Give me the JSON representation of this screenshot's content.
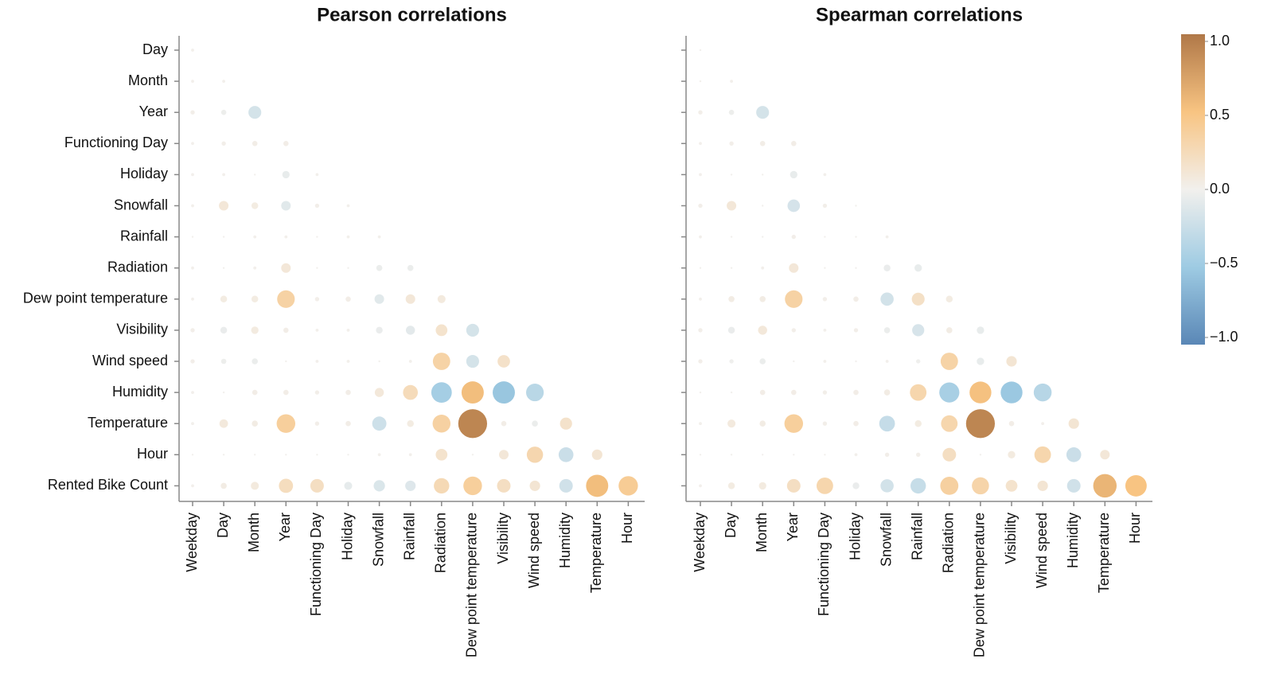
{
  "chart_data": [
    {
      "type": "bubble-matrix",
      "title": "Pearson correlations",
      "x_categories": [
        "Weekday",
        "Day",
        "Month",
        "Year",
        "Functioning Day",
        "Holiday",
        "Snowfall",
        "Rainfall",
        "Radiation",
        "Dew point temperature",
        "Visibility",
        "Wind speed",
        "Humidity",
        "Temperature",
        "Hour"
      ],
      "y_categories": [
        "Day",
        "Month",
        "Year",
        "Functioning Day",
        "Holiday",
        "Snowfall",
        "Rainfall",
        "Radiation",
        "Dew point temperature",
        "Visibility",
        "Wind speed",
        "Humidity",
        "Temperature",
        "Hour",
        "Rented Bike Count"
      ],
      "values": [
        [
          0.01
        ],
        [
          0.01,
          0.01
        ],
        [
          0.02,
          -0.03,
          -0.18
        ],
        [
          0.01,
          0.02,
          0.03,
          0.03
        ],
        [
          0.01,
          0.01,
          0.0,
          -0.06,
          0.01
        ],
        [
          0.01,
          0.1,
          0.05,
          -0.1,
          0.02,
          0.01
        ],
        [
          0.0,
          0.0,
          0.01,
          0.01,
          0.0,
          0.01,
          0.01
        ],
        [
          0.01,
          0.0,
          0.01,
          0.1,
          0.0,
          0.0,
          -0.04,
          -0.04
        ],
        [
          0.01,
          0.05,
          0.05,
          0.34,
          0.02,
          0.03,
          -0.1,
          0.1,
          0.07
        ],
        [
          0.02,
          -0.05,
          0.06,
          0.03,
          0.01,
          0.01,
          -0.05,
          -0.09,
          0.15,
          -0.18
        ],
        [
          0.02,
          -0.03,
          -0.04,
          0.0,
          0.01,
          0.01,
          0.0,
          0.01,
          0.33,
          -0.18,
          0.17
        ],
        [
          0.01,
          0.0,
          0.03,
          0.03,
          0.02,
          0.03,
          0.09,
          0.24,
          -0.46,
          0.54,
          -0.54,
          -0.34
        ],
        [
          0.01,
          0.08,
          0.04,
          0.38,
          0.02,
          0.03,
          -0.22,
          0.05,
          0.35,
          0.91,
          0.03,
          -0.04,
          0.16
        ],
        [
          0.0,
          0.0,
          0.0,
          0.0,
          0.0,
          0.0,
          0.01,
          0.01,
          0.15,
          0.0,
          0.1,
          0.29,
          -0.24,
          0.12
        ],
        [
          0.01,
          0.04,
          0.07,
          0.22,
          0.2,
          -0.07,
          -0.14,
          -0.12,
          0.26,
          0.38,
          0.2,
          0.12,
          -0.2,
          0.54,
          0.41
        ]
      ]
    },
    {
      "type": "bubble-matrix",
      "title": "Spearman correlations",
      "x_categories": [
        "Weekday",
        "Day",
        "Month",
        "Year",
        "Functioning Day",
        "Holiday",
        "Snowfall",
        "Rainfall",
        "Radiation",
        "Dew point temperature",
        "Visibility",
        "Wind speed",
        "Humidity",
        "Temperature",
        "Hour"
      ],
      "values": [
        [
          0.0
        ],
        [
          0.0,
          0.01
        ],
        [
          0.02,
          -0.03,
          -0.18
        ],
        [
          0.01,
          0.02,
          0.03,
          0.03
        ],
        [
          0.01,
          0.0,
          0.0,
          -0.06,
          0.01
        ],
        [
          0.02,
          0.1,
          0.0,
          -0.17,
          0.02,
          0.0
        ],
        [
          0.01,
          0.0,
          0.0,
          0.02,
          0.0,
          0.0,
          0.01
        ],
        [
          0.0,
          0.0,
          0.01,
          0.1,
          0.0,
          0.0,
          -0.05,
          -0.06
        ],
        [
          0.01,
          0.04,
          0.04,
          0.34,
          0.02,
          0.03,
          -0.19,
          0.18,
          0.05
        ],
        [
          0.02,
          -0.05,
          0.09,
          0.02,
          0.01,
          0.02,
          -0.04,
          -0.16,
          0.04,
          -0.06
        ],
        [
          0.02,
          -0.02,
          -0.04,
          0.0,
          0.01,
          0.0,
          0.01,
          -0.02,
          0.33,
          -0.06,
          0.12
        ],
        [
          0.0,
          0.0,
          0.03,
          0.03,
          0.02,
          0.03,
          0.04,
          0.3,
          -0.44,
          0.52,
          -0.52,
          -0.35
        ],
        [
          0.01,
          0.07,
          0.04,
          0.38,
          0.02,
          0.03,
          -0.27,
          0.05,
          0.3,
          0.91,
          0.03,
          0.01,
          0.12
        ],
        [
          0.0,
          0.0,
          0.0,
          0.0,
          0.0,
          0.01,
          0.02,
          0.02,
          0.2,
          0.0,
          0.06,
          0.3,
          -0.24,
          0.1
        ],
        [
          0.01,
          0.05,
          0.06,
          0.2,
          0.3,
          -0.05,
          -0.19,
          -0.26,
          0.36,
          0.32,
          0.15,
          0.12,
          -0.2,
          0.6,
          0.5
        ]
      ]
    }
  ],
  "color_scale": {
    "domain": [
      -1,
      1
    ],
    "colors": [
      "#5a87b6",
      "#9ecbe3",
      "#f2f0ed",
      "#f8c482",
      "#b07848"
    ],
    "ticks": [
      {
        "value": 1,
        "label": "1.0"
      },
      {
        "value": 0.5,
        "label": "0.5"
      },
      {
        "value": 0,
        "label": "0.0"
      },
      {
        "value": -0.5,
        "label": "−0.5"
      },
      {
        "value": -1,
        "label": "−1.0"
      }
    ]
  }
}
